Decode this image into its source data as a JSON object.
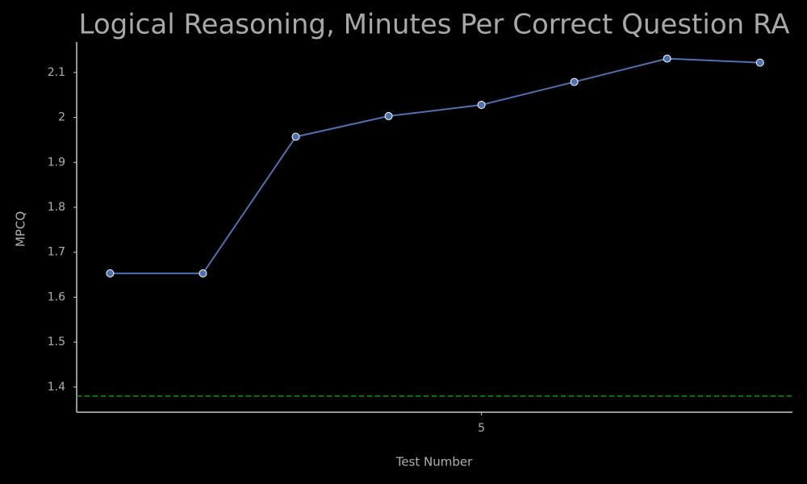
{
  "chart_data": {
    "type": "line",
    "title": "Logical Reasoning, Minutes Per Correct Question RA",
    "xlabel": "Test Number",
    "ylabel": "MPCQ",
    "x": [
      1,
      2,
      3,
      4,
      5,
      6,
      7,
      8
    ],
    "series": [
      {
        "color": "#4c72b0",
        "values": [
          1.653,
          1.653,
          1.957,
          2.003,
          2.028,
          2.079,
          2.131,
          2.122
        ]
      }
    ],
    "reference_line": {
      "value": 1.38,
      "color": "#00a000"
    },
    "xlim": [
      0.64,
      8.35
    ],
    "xticks": [
      5
    ],
    "ylim": [
      1.344,
      2.168
    ],
    "yticks": [
      1.4,
      1.5,
      1.6,
      1.7,
      1.8,
      1.9,
      2.0,
      2.1
    ],
    "grid": false
  }
}
